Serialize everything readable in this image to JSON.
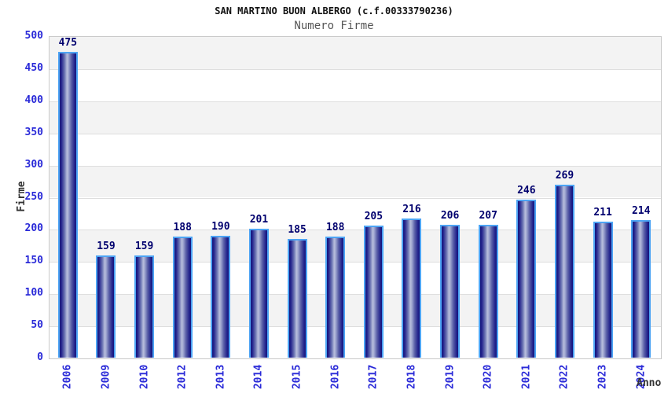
{
  "chart_data": {
    "type": "bar",
    "title": "SAN MARTINO BUON ALBERGO (c.f.00333790236)",
    "subtitle": "Numero Firme",
    "xlabel": "Anno",
    "ylabel": "Firme",
    "categories": [
      "2006",
      "2009",
      "2010",
      "2012",
      "2013",
      "2014",
      "2015",
      "2016",
      "2017",
      "2018",
      "2019",
      "2020",
      "2021",
      "2022",
      "2023",
      "2024"
    ],
    "values": [
      475,
      159,
      159,
      188,
      190,
      201,
      185,
      188,
      205,
      216,
      206,
      207,
      246,
      269,
      211,
      214
    ],
    "ylim": [
      0,
      500
    ],
    "ytick_step": 50,
    "yticks": [
      0,
      50,
      100,
      150,
      200,
      250,
      300,
      350,
      400,
      450,
      500
    ],
    "grid": "horizontal alternating bands, gray on top band",
    "legend": "none",
    "colors": {
      "bar_border": "#4da4f4",
      "bar_dark": "#15157b",
      "bar_light": "#b7bddc",
      "tick_label": "#2a2ad8",
      "value_label": "#00006e",
      "band_gray": "#f3f3f3",
      "band_white": "#ffffff",
      "grid_line": "#dedede",
      "plot_border": "#c9c9c9",
      "title_color": "#111111",
      "subtitle_color": "#555555",
      "axis_title_color": "#333333"
    }
  }
}
